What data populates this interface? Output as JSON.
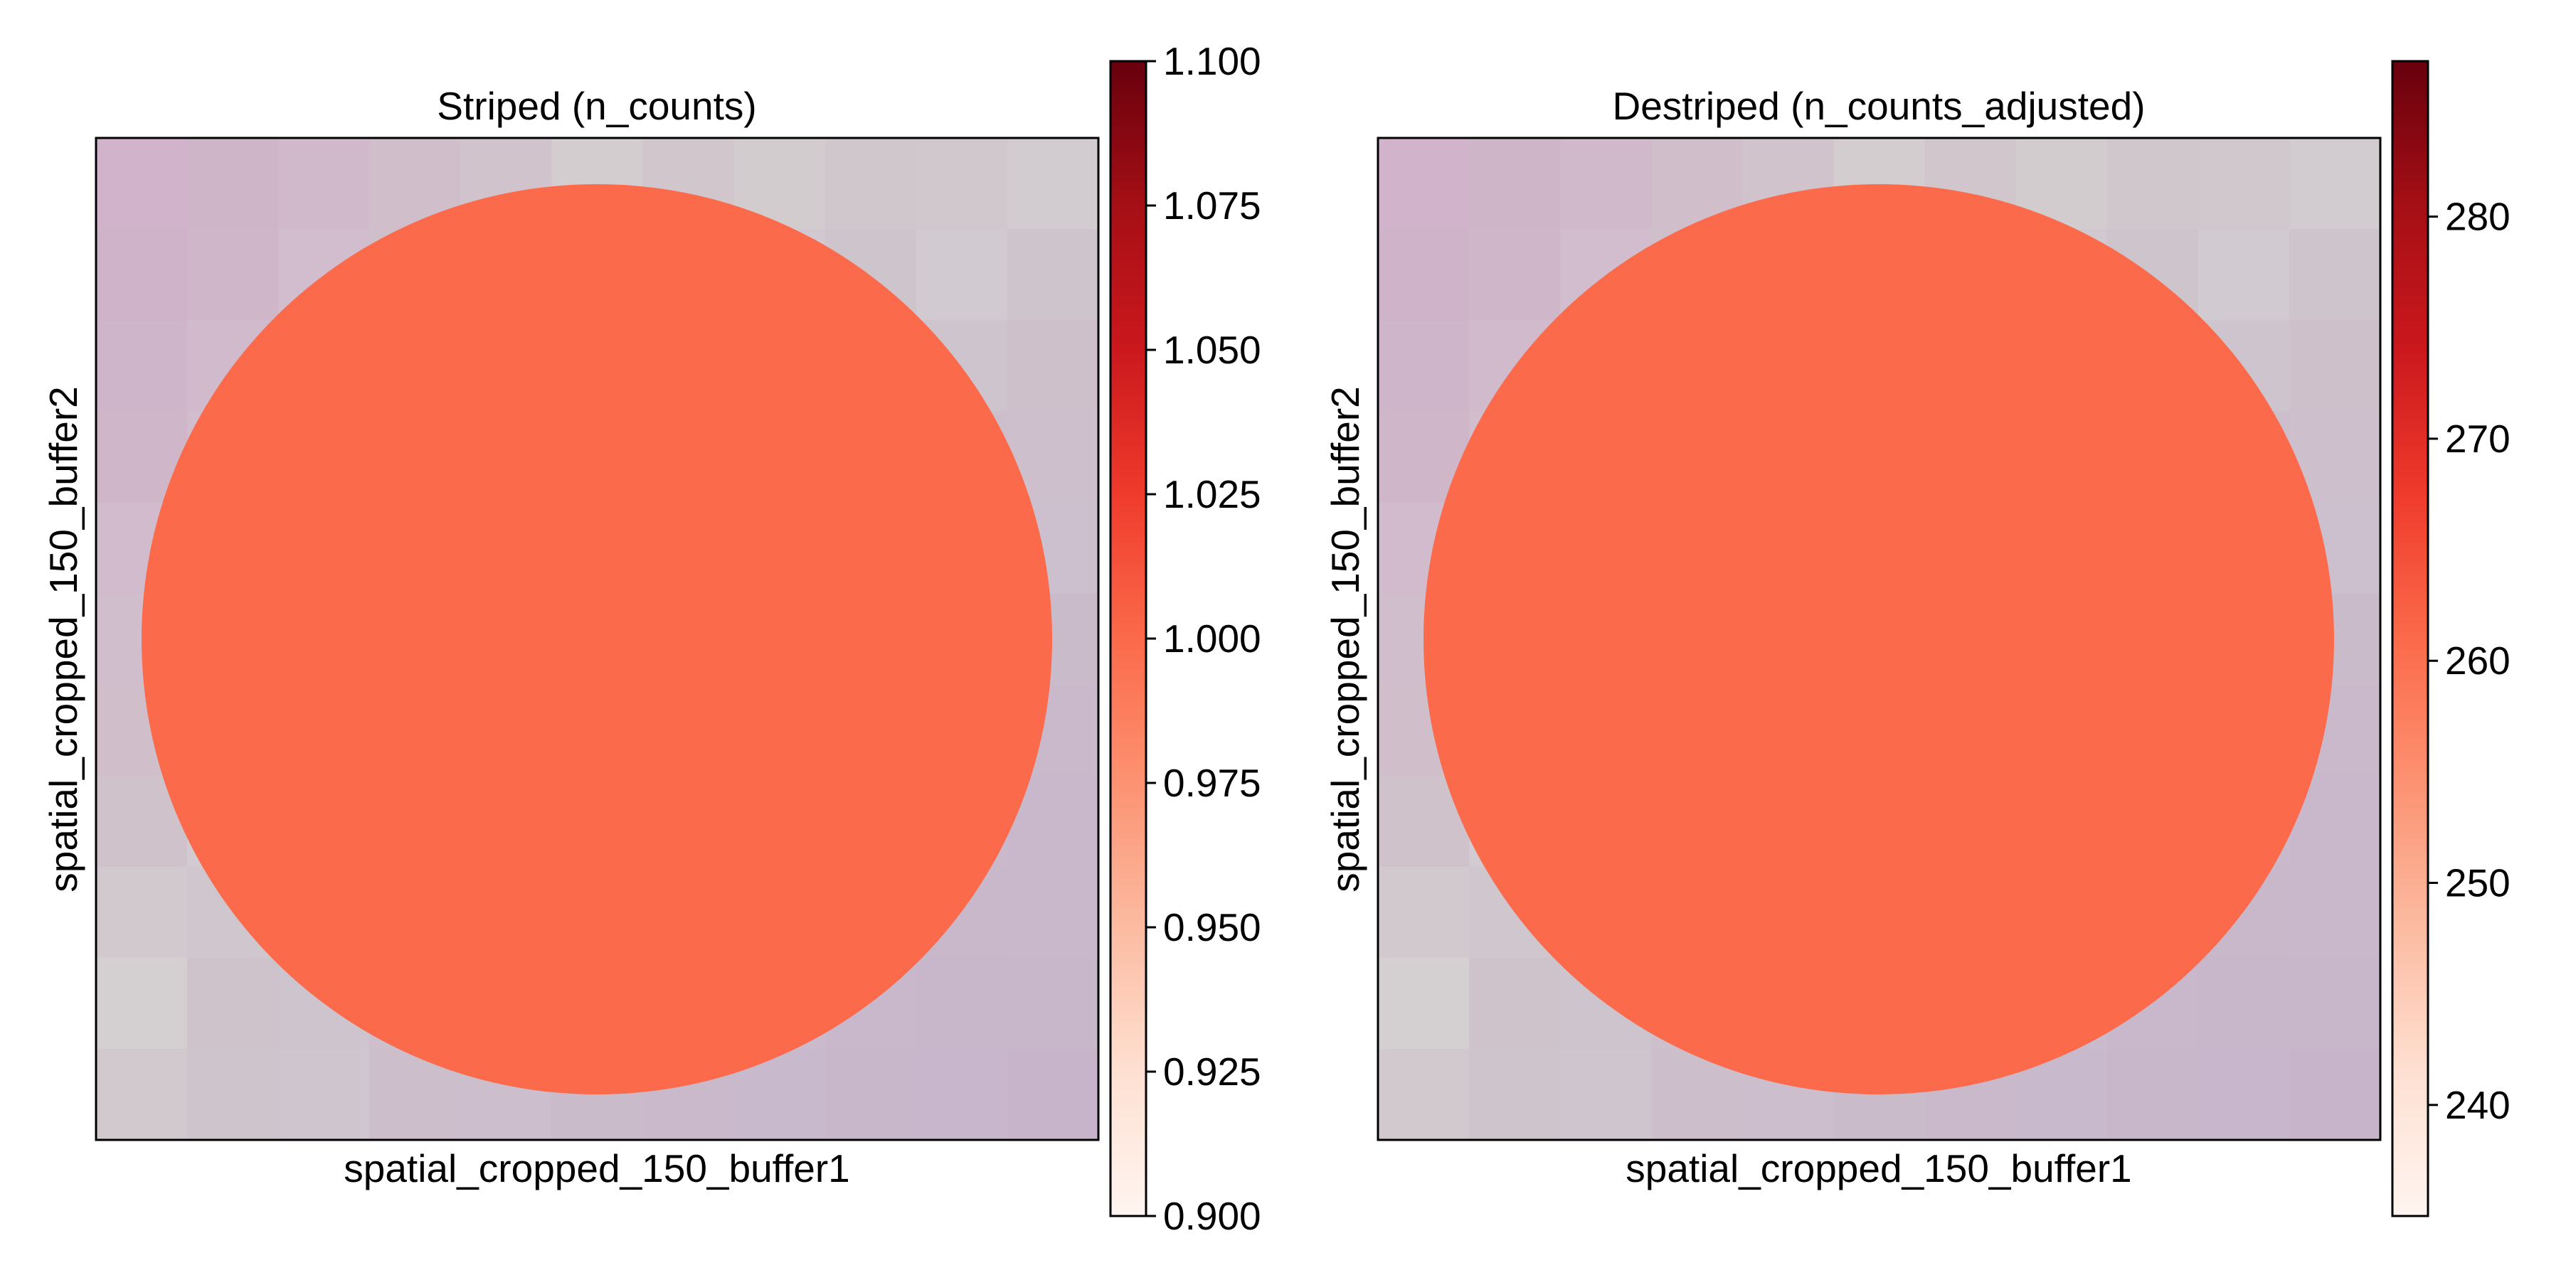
{
  "chart_data": [
    {
      "type": "scatter",
      "title": "Striped (n_counts)",
      "xlabel": "spatial_cropped_150_buffer1",
      "ylabel": "spatial_cropped_150_buffer2",
      "points": [
        {
          "value": 1.0
        }
      ],
      "background": "tissue image tiles (pink/purple/gray)",
      "colorbar": {
        "cmap": "Reds",
        "vmin": 0.9,
        "vmax": 1.1,
        "ticks": [
          "0.900",
          "0.925",
          "0.950",
          "0.975",
          "1.000",
          "1.025",
          "1.050",
          "1.075",
          "1.100"
        ]
      },
      "grid": false,
      "xticks": [],
      "yticks": []
    },
    {
      "type": "scatter",
      "title": "Destriped (n_counts_adjusted)",
      "xlabel": "spatial_cropped_150_buffer1",
      "ylabel": "spatial_cropped_150_buffer2",
      "points": [
        {
          "value": 261
        }
      ],
      "background": "tissue image tiles (pink/purple/gray)",
      "colorbar": {
        "cmap": "Reds",
        "vmin": 235,
        "vmax": 287,
        "ticks": [
          "240",
          "250",
          "260",
          "270",
          "280"
        ]
      },
      "grid": false,
      "xticks": [],
      "yticks": []
    }
  ],
  "colors": {
    "spot": "#fc6b4d",
    "axes": "#000000"
  }
}
